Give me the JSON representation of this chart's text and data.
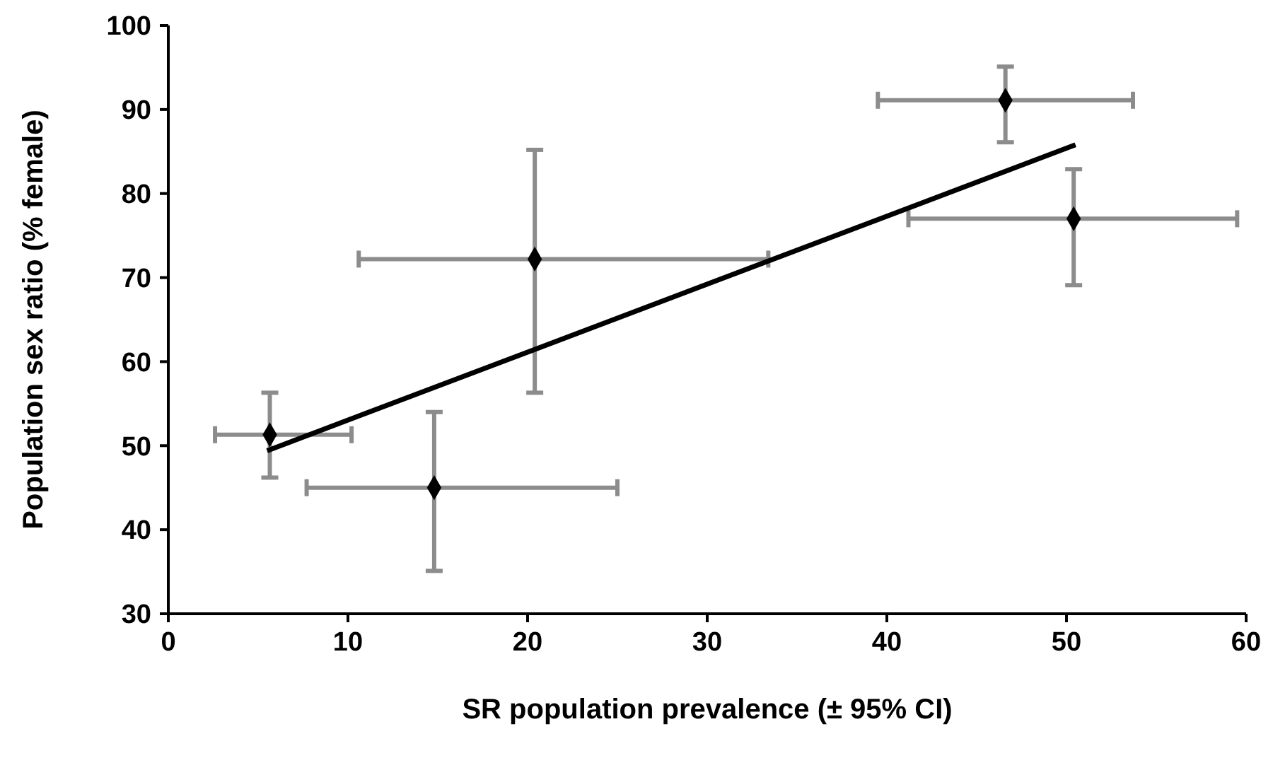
{
  "chart_data": {
    "type": "scatter",
    "xlabel": "SR population prevalence (± 95% CI)",
    "ylabel": "Population sex ratio (% female)",
    "xlim": [
      0,
      60
    ],
    "xticks": [
      0,
      10,
      20,
      30,
      40,
      50,
      60
    ],
    "ylim": [
      30,
      100
    ],
    "yticks": [
      30,
      40,
      50,
      60,
      70,
      80,
      90,
      100
    ],
    "grid": false,
    "marker": "diamond",
    "series": [
      {
        "color": "#000000",
        "x": [
          5.65,
          14.8,
          20.4,
          46.6,
          50.4
        ],
        "values": [
          51.3,
          45.0,
          72.2,
          91.1,
          77.0
        ],
        "errors": [
          [
            46.2,
            56.3
          ],
          [
            35.1,
            54.0
          ],
          [
            56.3,
            85.2
          ],
          [
            86.1,
            95.1
          ],
          [
            69.1,
            82.9
          ]
        ],
        "xerrors": [
          [
            2.6,
            10.2
          ],
          [
            7.7,
            25.0
          ],
          [
            10.6,
            33.4
          ],
          [
            39.5,
            53.7
          ],
          [
            41.2,
            59.5
          ]
        ]
      },
      {
        "type": "line",
        "color": "#000000",
        "x": [
          5.5,
          50.5
        ],
        "values": [
          49.4,
          85.8
        ],
        "line_style": "solid",
        "marker": "none"
      }
    ]
  }
}
